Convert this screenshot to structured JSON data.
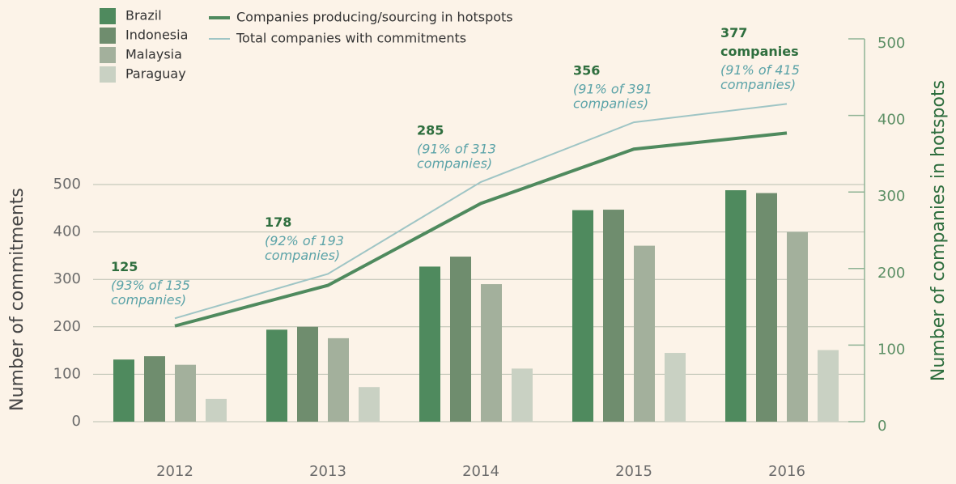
{
  "chart_data": {
    "type": "bar",
    "categories": [
      "2012",
      "2013",
      "2014",
      "2015",
      "2016"
    ],
    "series": [
      {
        "name": "Brazil",
        "color": "#4f8a5e",
        "values": [
          131,
          194,
          327,
          446,
          488
        ]
      },
      {
        "name": "Indonesia",
        "color": "#6f8d6e",
        "values": [
          138,
          200,
          348,
          447,
          482
        ]
      },
      {
        "name": "Malaysia",
        "color": "#a3b09c",
        "values": [
          120,
          176,
          290,
          371,
          400
        ]
      },
      {
        "name": "Paraguay",
        "color": "#c9d1c3",
        "values": [
          48,
          73,
          112,
          145,
          151
        ]
      }
    ],
    "lines": [
      {
        "name": "Companies producing/sourcing in hotspots",
        "color": "#4f8a5e",
        "axis": "y2",
        "values": [
          125,
          178,
          285,
          356,
          377
        ]
      },
      {
        "name": "Total companies with commitments",
        "color": "#9fc5c5",
        "axis": "y2",
        "values": [
          135,
          193,
          313,
          391,
          415
        ]
      }
    ],
    "annotations": [
      {
        "italic": [
          "(93% of 135",
          "companies)"
        ]
      },
      {
        "italic": [
          "(92% of 193",
          "companies)"
        ]
      },
      {
        "italic": [
          "(91% of 313",
          "companies)"
        ]
      },
      {
        "italic": [
          "(91% of 391",
          "companies)"
        ]
      },
      {
        "bold": [
          "companies"
        ],
        "italic": [
          "(91% of 415",
          "companies)"
        ]
      }
    ],
    "ylabel": "Number of commitments",
    "y2label": "Number of companies in hotspots",
    "ylim": [
      0,
      500
    ],
    "yticks": [
      0,
      100,
      200,
      300,
      400,
      500
    ],
    "y2lim": [
      0,
      500
    ],
    "y2ticks": [
      0,
      100,
      200,
      300,
      400,
      500
    ],
    "grid": true
  }
}
